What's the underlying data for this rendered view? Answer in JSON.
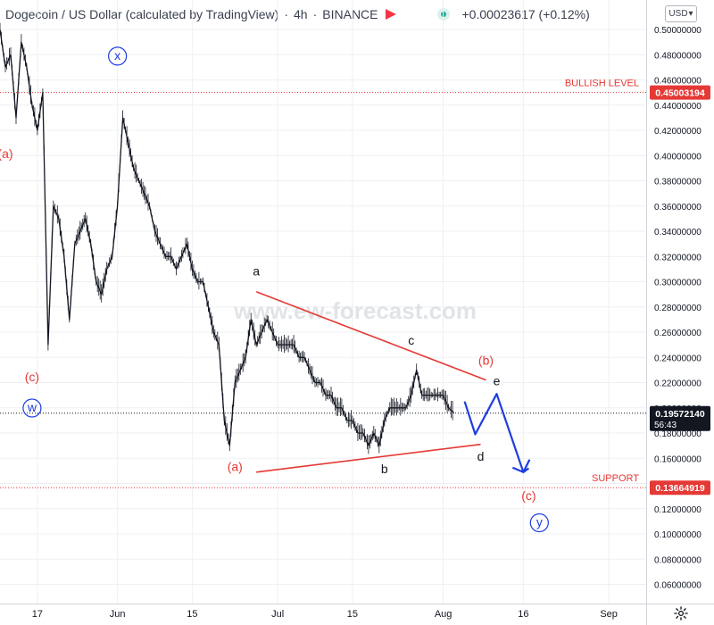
{
  "header": {
    "symbol": "Dogecoin / US Dollar (calculated by TradingView)",
    "interval": "4h",
    "exchange": "BINANCE",
    "change": "+0.00023617 (+0.12%)",
    "separator": "·"
  },
  "currency_select": {
    "value": "USD",
    "arrow": "▾"
  },
  "watermark": "www.ew-forecast.com",
  "colors": {
    "red": "#e53935",
    "blue": "#1e3de0",
    "black": "#131722",
    "grid": "#eef0f3"
  },
  "chart_data": {
    "type": "line",
    "title": "Dogecoin / US Dollar (calculated by TradingView) · 4h · BINANCE",
    "ylim": [
      0.04,
      0.52
    ],
    "y_scale": "linear",
    "y_ticks": [
      0.06,
      0.08,
      0.1,
      0.12,
      0.14,
      0.16,
      0.18,
      0.2,
      0.22,
      0.24,
      0.26,
      0.28,
      0.3,
      0.32,
      0.34,
      0.36,
      0.38,
      0.4,
      0.42,
      0.44,
      0.46,
      0.48,
      0.5
    ],
    "y_tick_labels": [
      "0.06000000",
      "0.08000000",
      "0.10000000",
      "0.12000000",
      "0.14000000",
      "0.16000000",
      "0.18000000",
      "0.20000000",
      "0.22000000",
      "0.24000000",
      "0.26000000",
      "0.28000000",
      "0.30000000",
      "0.32000000",
      "0.34000000",
      "0.36000000",
      "0.38000000",
      "0.40000000",
      "0.42000000",
      "0.44000000",
      "0.46000000",
      "0.48000000",
      "0.50000000"
    ],
    "x_range": [
      "2021-05-10",
      "2021-09-08"
    ],
    "x_ticks": [
      {
        "date": "2021-05-17",
        "label": "17"
      },
      {
        "date": "2021-06-01",
        "label": "Jun"
      },
      {
        "date": "2021-06-15",
        "label": "15"
      },
      {
        "date": "2021-07-01",
        "label": "Jul"
      },
      {
        "date": "2021-07-15",
        "label": "15"
      },
      {
        "date": "2021-08-01",
        "label": "Aug"
      },
      {
        "date": "2021-08-16",
        "label": "16"
      },
      {
        "date": "2021-09-01",
        "label": "Sep"
      }
    ],
    "series": [
      {
        "values": [
          {
            "x": "2021-05-10",
            "y": 0.5
          },
          {
            "x": "2021-05-11",
            "y": 0.47
          },
          {
            "x": "2021-05-12",
            "y": 0.48
          },
          {
            "x": "2021-05-13",
            "y": 0.43
          },
          {
            "x": "2021-05-14",
            "y": 0.49
          },
          {
            "x": "2021-05-15",
            "y": 0.47
          },
          {
            "x": "2021-05-16",
            "y": 0.44
          },
          {
            "x": "2021-05-17",
            "y": 0.42
          },
          {
            "x": "2021-05-18",
            "y": 0.45
          },
          {
            "x": "2021-05-19",
            "y": 0.25
          },
          {
            "x": "2021-05-20",
            "y": 0.36
          },
          {
            "x": "2021-05-21",
            "y": 0.35
          },
          {
            "x": "2021-05-22",
            "y": 0.32
          },
          {
            "x": "2021-05-23",
            "y": 0.27
          },
          {
            "x": "2021-05-24",
            "y": 0.33
          },
          {
            "x": "2021-05-25",
            "y": 0.34
          },
          {
            "x": "2021-05-26",
            "y": 0.35
          },
          {
            "x": "2021-05-27",
            "y": 0.33
          },
          {
            "x": "2021-05-28",
            "y": 0.3
          },
          {
            "x": "2021-05-29",
            "y": 0.29
          },
          {
            "x": "2021-05-30",
            "y": 0.31
          },
          {
            "x": "2021-05-31",
            "y": 0.32
          },
          {
            "x": "2021-06-01",
            "y": 0.36
          },
          {
            "x": "2021-06-02",
            "y": 0.43
          },
          {
            "x": "2021-06-03",
            "y": 0.41
          },
          {
            "x": "2021-06-04",
            "y": 0.39
          },
          {
            "x": "2021-06-05",
            "y": 0.38
          },
          {
            "x": "2021-06-06",
            "y": 0.37
          },
          {
            "x": "2021-06-07",
            "y": 0.36
          },
          {
            "x": "2021-06-08",
            "y": 0.34
          },
          {
            "x": "2021-06-09",
            "y": 0.33
          },
          {
            "x": "2021-06-10",
            "y": 0.32
          },
          {
            "x": "2021-06-11",
            "y": 0.32
          },
          {
            "x": "2021-06-12",
            "y": 0.31
          },
          {
            "x": "2021-06-13",
            "y": 0.32
          },
          {
            "x": "2021-06-14",
            "y": 0.33
          },
          {
            "x": "2021-06-15",
            "y": 0.31
          },
          {
            "x": "2021-06-16",
            "y": 0.3
          },
          {
            "x": "2021-06-17",
            "y": 0.3
          },
          {
            "x": "2021-06-18",
            "y": 0.28
          },
          {
            "x": "2021-06-19",
            "y": 0.26
          },
          {
            "x": "2021-06-20",
            "y": 0.25
          },
          {
            "x": "2021-06-21",
            "y": 0.19
          },
          {
            "x": "2021-06-22",
            "y": 0.17
          },
          {
            "x": "2021-06-23",
            "y": 0.22
          },
          {
            "x": "2021-06-24",
            "y": 0.23
          },
          {
            "x": "2021-06-25",
            "y": 0.24
          },
          {
            "x": "2021-06-26",
            "y": 0.27
          },
          {
            "x": "2021-06-27",
            "y": 0.25
          },
          {
            "x": "2021-06-28",
            "y": 0.26
          },
          {
            "x": "2021-06-29",
            "y": 0.27
          },
          {
            "x": "2021-06-30",
            "y": 0.26
          },
          {
            "x": "2021-07-01",
            "y": 0.25
          },
          {
            "x": "2021-07-02",
            "y": 0.25
          },
          {
            "x": "2021-07-03",
            "y": 0.25
          },
          {
            "x": "2021-07-04",
            "y": 0.25
          },
          {
            "x": "2021-07-05",
            "y": 0.24
          },
          {
            "x": "2021-07-06",
            "y": 0.24
          },
          {
            "x": "2021-07-07",
            "y": 0.23
          },
          {
            "x": "2021-07-08",
            "y": 0.22
          },
          {
            "x": "2021-07-09",
            "y": 0.22
          },
          {
            "x": "2021-07-10",
            "y": 0.21
          },
          {
            "x": "2021-07-11",
            "y": 0.21
          },
          {
            "x": "2021-07-12",
            "y": 0.2
          },
          {
            "x": "2021-07-13",
            "y": 0.2
          },
          {
            "x": "2021-07-14",
            "y": 0.19
          },
          {
            "x": "2021-07-15",
            "y": 0.19
          },
          {
            "x": "2021-07-16",
            "y": 0.18
          },
          {
            "x": "2021-07-17",
            "y": 0.18
          },
          {
            "x": "2021-07-18",
            "y": 0.17
          },
          {
            "x": "2021-07-19",
            "y": 0.18
          },
          {
            "x": "2021-07-20",
            "y": 0.17
          },
          {
            "x": "2021-07-21",
            "y": 0.19
          },
          {
            "x": "2021-07-22",
            "y": 0.2
          },
          {
            "x": "2021-07-23",
            "y": 0.2
          },
          {
            "x": "2021-07-24",
            "y": 0.2
          },
          {
            "x": "2021-07-25",
            "y": 0.2
          },
          {
            "x": "2021-07-26",
            "y": 0.21
          },
          {
            "x": "2021-07-27",
            "y": 0.23
          },
          {
            "x": "2021-07-28",
            "y": 0.21
          },
          {
            "x": "2021-07-29",
            "y": 0.21
          },
          {
            "x": "2021-07-30",
            "y": 0.21
          },
          {
            "x": "2021-07-31",
            "y": 0.21
          },
          {
            "x": "2021-08-01",
            "y": 0.21
          },
          {
            "x": "2021-08-02",
            "y": 0.2
          },
          {
            "x": "2021-08-03",
            "y": 0.196
          }
        ]
      }
    ],
    "horizontal_levels": [
      {
        "label": "BULLISH LEVEL",
        "value": 0.45003194,
        "price_label": "0.45003194",
        "color": "#e53935"
      },
      {
        "label": "SUPPORT",
        "value": 0.13664919,
        "price_label": "0.13664919",
        "color": "#e53935"
      },
      {
        "label": "",
        "value": 0.1957214,
        "price_label": "0.19572140",
        "countdown": "56:43",
        "color": "#131722"
      }
    ],
    "triangle_lines": [
      {
        "from": {
          "x": "2021-06-27",
          "y": 0.292
        },
        "to": {
          "x": "2021-08-09",
          "y": 0.222
        }
      },
      {
        "from": {
          "x": "2021-06-27",
          "y": 0.149
        },
        "to": {
          "x": "2021-08-08",
          "y": 0.171
        }
      }
    ],
    "projection_path": [
      {
        "x": "2021-08-05",
        "y": 0.205
      },
      {
        "x": "2021-08-07",
        "y": 0.179
      },
      {
        "x": "2021-08-11",
        "y": 0.211
      },
      {
        "x": "2021-08-16",
        "y": 0.149
      },
      {
        "x": "2021-08-17",
        "y": 0.152
      }
    ],
    "wave_labels": [
      {
        "text": "(a)",
        "x": "2021-05-11",
        "y": 0.398,
        "color": "red",
        "circle": false
      },
      {
        "text": "(c)",
        "x": "2021-05-16",
        "y": 0.221,
        "color": "red",
        "circle": false
      },
      {
        "text": "w",
        "x": "2021-05-16",
        "y": 0.197,
        "color": "blue",
        "circle": true
      },
      {
        "text": "x",
        "x": "2021-06-01",
        "y": 0.476,
        "color": "blue",
        "circle": true
      },
      {
        "text": "a",
        "x": "2021-06-27",
        "y": 0.305,
        "color": "black",
        "circle": false
      },
      {
        "text": "(a)",
        "x": "2021-06-23",
        "y": 0.15,
        "color": "red",
        "circle": false
      },
      {
        "text": "c",
        "x": "2021-07-26",
        "y": 0.25,
        "color": "black",
        "circle": false
      },
      {
        "text": "b",
        "x": "2021-07-21",
        "y": 0.148,
        "color": "black",
        "circle": false
      },
      {
        "text": "(b)",
        "x": "2021-08-09",
        "y": 0.234,
        "color": "red",
        "circle": false
      },
      {
        "text": "e",
        "x": "2021-08-11",
        "y": 0.218,
        "color": "black",
        "circle": false
      },
      {
        "text": "d",
        "x": "2021-08-08",
        "y": 0.158,
        "color": "black",
        "circle": false
      },
      {
        "text": "(c)",
        "x": "2021-08-17",
        "y": 0.127,
        "color": "red",
        "circle": false
      },
      {
        "text": "y",
        "x": "2021-08-19",
        "y": 0.106,
        "color": "blue",
        "circle": true
      }
    ]
  }
}
